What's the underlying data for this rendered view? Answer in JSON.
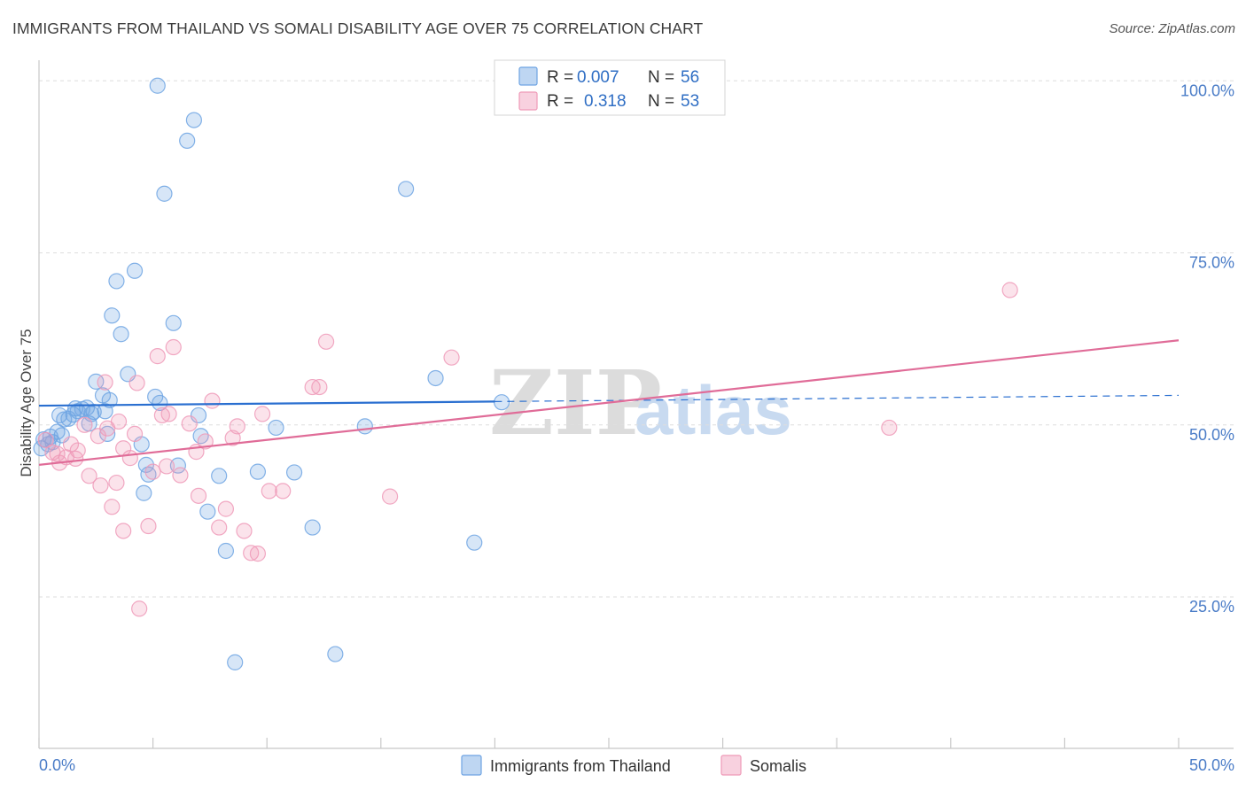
{
  "header": {
    "title": "IMMIGRANTS FROM THAILAND VS SOMALI DISABILITY AGE OVER 75 CORRELATION CHART",
    "source": "Source: ZipAtlas.com"
  },
  "watermark": {
    "zip": "ZIP",
    "atlas": "atlas"
  },
  "legend": {
    "rows": [
      {
        "r_label": "R =",
        "r_value": "0.007",
        "n_label": "N =",
        "n_value": "56"
      },
      {
        "r_label": "R =",
        "r_value": "0.318",
        "n_label": "N =",
        "n_value": "53"
      }
    ]
  },
  "bottom_legend": [
    "Immigrants from Thailand",
    "Somalis"
  ],
  "chart_data": {
    "type": "scatter",
    "title": "IMMIGRANTS FROM THAILAND VS SOMALI DISABILITY AGE OVER 75 CORRELATION CHART",
    "xlabel": "",
    "ylabel": "Disability Age Over 75",
    "xlim": [
      0,
      50
    ],
    "ylim": [
      3,
      103
    ],
    "x_tick_labels": [
      "0.0%",
      "50.0%"
    ],
    "y_ticks": [
      25,
      50,
      75,
      100
    ],
    "y_tick_labels": [
      "25.0%",
      "50.0%",
      "75.0%",
      "100.0%"
    ],
    "grid": true,
    "legend_position": "top-center",
    "colors": {
      "thailand": "#6fa4e3",
      "somalis": "#ef9ab8",
      "thailand_line": "#2a6fd0",
      "somalis_line": "#e06c98"
    },
    "series": [
      {
        "name": "Immigrants from Thailand",
        "key": "thailand",
        "stats": {
          "R": 0.007,
          "N": 56
        },
        "trend": {
          "x0": 0,
          "y0": 52.8,
          "x1": 20.0,
          "y1": 53.4,
          "dash_x1": 50,
          "dash_y1": 54.3
        },
        "points": [
          [
            0.2,
            47.9
          ],
          [
            0.4,
            47.2
          ],
          [
            0.5,
            48.3
          ],
          [
            0.6,
            47.5
          ],
          [
            0.8,
            49.0
          ],
          [
            0.9,
            51.4
          ],
          [
            1.0,
            48.5
          ],
          [
            1.1,
            50.8
          ],
          [
            1.3,
            50.9
          ],
          [
            1.5,
            51.5
          ],
          [
            1.6,
            52.4
          ],
          [
            1.7,
            52.0
          ],
          [
            1.9,
            52.3
          ],
          [
            2.1,
            52.5
          ],
          [
            2.3,
            51.6
          ],
          [
            2.2,
            50.2
          ],
          [
            2.4,
            51.9
          ],
          [
            2.5,
            56.3
          ],
          [
            2.8,
            54.3
          ],
          [
            2.9,
            52.0
          ],
          [
            3.0,
            48.7
          ],
          [
            3.1,
            53.6
          ],
          [
            3.2,
            65.9
          ],
          [
            3.4,
            70.9
          ],
          [
            3.6,
            63.2
          ],
          [
            3.9,
            57.4
          ],
          [
            4.2,
            72.4
          ],
          [
            4.5,
            47.2
          ],
          [
            4.6,
            40.1
          ],
          [
            4.7,
            44.2
          ],
          [
            4.8,
            42.8
          ],
          [
            5.1,
            54.1
          ],
          [
            5.3,
            53.2
          ],
          [
            5.5,
            83.6
          ],
          [
            5.9,
            64.8
          ],
          [
            6.1,
            44.1
          ],
          [
            6.5,
            91.3
          ],
          [
            6.8,
            94.3
          ],
          [
            7.0,
            51.4
          ],
          [
            7.1,
            48.4
          ],
          [
            7.4,
            37.4
          ],
          [
            7.9,
            42.6
          ],
          [
            8.2,
            31.7
          ],
          [
            8.6,
            15.5
          ],
          [
            9.6,
            43.2
          ],
          [
            10.4,
            49.6
          ],
          [
            11.2,
            43.1
          ],
          [
            12.0,
            35.1
          ],
          [
            13.0,
            16.7
          ],
          [
            14.3,
            49.8
          ],
          [
            16.1,
            84.3
          ],
          [
            17.4,
            56.8
          ],
          [
            19.1,
            32.9
          ],
          [
            20.3,
            53.3
          ],
          [
            5.2,
            99.3
          ],
          [
            0.1,
            46.6
          ]
        ]
      },
      {
        "name": "Somalis",
        "key": "somalis",
        "stats": {
          "R": 0.318,
          "N": 53
        },
        "trend": {
          "x0": 0,
          "y0": 44.2,
          "x1": 50,
          "y1": 62.3
        },
        "points": [
          [
            0.3,
            47.8
          ],
          [
            0.6,
            46.0
          ],
          [
            0.9,
            44.5
          ],
          [
            1.2,
            45.3
          ],
          [
            1.4,
            47.2
          ],
          [
            1.7,
            46.3
          ],
          [
            2.0,
            50.0
          ],
          [
            2.2,
            42.6
          ],
          [
            2.6,
            48.4
          ],
          [
            2.9,
            56.2
          ],
          [
            3.0,
            49.5
          ],
          [
            3.2,
            38.1
          ],
          [
            3.4,
            41.6
          ],
          [
            3.5,
            50.5
          ],
          [
            3.7,
            34.6
          ],
          [
            4.0,
            45.2
          ],
          [
            4.2,
            48.7
          ],
          [
            4.4,
            23.3
          ],
          [
            4.8,
            35.3
          ],
          [
            5.0,
            43.2
          ],
          [
            5.2,
            60.0
          ],
          [
            5.4,
            51.4
          ],
          [
            5.7,
            51.6
          ],
          [
            5.9,
            61.3
          ],
          [
            6.2,
            42.7
          ],
          [
            6.6,
            50.2
          ],
          [
            7.0,
            39.7
          ],
          [
            7.3,
            47.6
          ],
          [
            7.6,
            53.5
          ],
          [
            7.9,
            35.1
          ],
          [
            8.2,
            37.8
          ],
          [
            8.5,
            48.1
          ],
          [
            8.7,
            49.8
          ],
          [
            9.0,
            34.6
          ],
          [
            9.3,
            31.4
          ],
          [
            9.6,
            31.3
          ],
          [
            9.8,
            51.6
          ],
          [
            10.1,
            40.4
          ],
          [
            10.7,
            40.4
          ],
          [
            12.0,
            55.5
          ],
          [
            12.3,
            55.5
          ],
          [
            12.6,
            62.1
          ],
          [
            15.4,
            39.6
          ],
          [
            18.1,
            59.8
          ],
          [
            37.3,
            49.6
          ],
          [
            42.6,
            69.6
          ],
          [
            1.6,
            45.1
          ],
          [
            2.7,
            41.2
          ],
          [
            4.3,
            56.1
          ],
          [
            5.6,
            44.0
          ],
          [
            6.9,
            46.1
          ],
          [
            3.7,
            46.6
          ],
          [
            0.8,
            45.8
          ]
        ]
      }
    ]
  }
}
